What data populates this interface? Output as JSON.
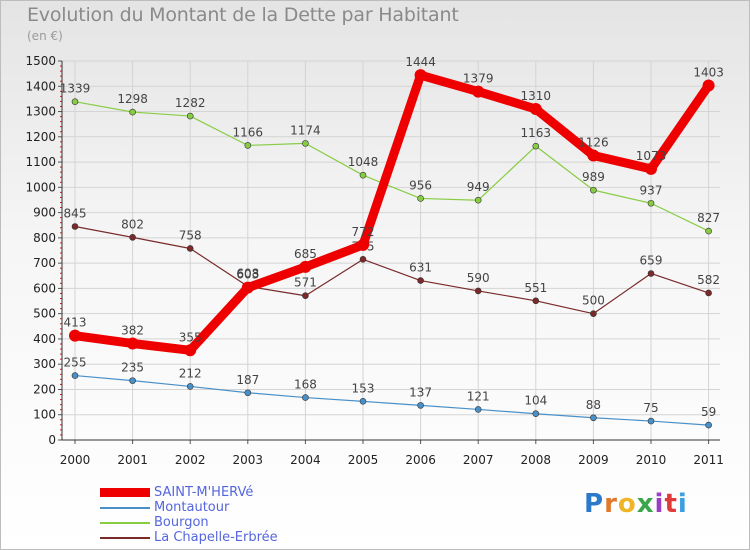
{
  "title": "Evolution du Montant de la Dette par Habitant",
  "subtitle": "(en €)",
  "logo": {
    "letters": [
      "P",
      "r",
      "o",
      "x",
      "i",
      "t",
      "i"
    ],
    "colors": [
      "#2b79c8",
      "#e07a2a",
      "#f0b428",
      "#3aa64a",
      "#9a3ec8",
      "#e13a3a",
      "#3a9ee0"
    ]
  },
  "chart_data": {
    "type": "line",
    "x": [
      "2000",
      "2001",
      "2002",
      "2003",
      "2004",
      "2005",
      "2006",
      "2007",
      "2008",
      "2009",
      "2010",
      "2011"
    ],
    "ylim": [
      0,
      1500
    ],
    "yticks": [
      "0",
      "100",
      "200",
      "300",
      "400",
      "500",
      "600",
      "700",
      "800",
      "900",
      "1000",
      "1100",
      "1200",
      "1300",
      "1400",
      "1500"
    ],
    "grid": true,
    "legend_position": "bottom-left",
    "series": [
      {
        "name": "SAINT-M'HERVé",
        "color": "#ee0000",
        "values": [
          413,
          382,
          355,
          603,
          685,
          772,
          1444,
          1379,
          1310,
          1126,
          1073,
          1403
        ],
        "labels": [
          "413",
          "382",
          "355",
          "603",
          "685",
          "772",
          "1444",
          "1379",
          "1310",
          "1126",
          "1073",
          "1403"
        ]
      },
      {
        "name": "Montautour",
        "color": "#4a90c8",
        "values": [
          255,
          235,
          212,
          187,
          168,
          153,
          137,
          121,
          104,
          88,
          75,
          59
        ],
        "labels": [
          "255",
          "235",
          "212",
          "187",
          "168",
          "153",
          "137",
          "121",
          "104",
          "88",
          "75",
          "59"
        ]
      },
      {
        "name": "Bourgon",
        "color": "#88cc44",
        "values": [
          1339,
          1298,
          1282,
          1166,
          1174,
          1048,
          956,
          949,
          1163,
          989,
          937,
          827
        ],
        "labels": [
          "1339",
          "1298",
          "1282",
          "1166",
          "1174",
          "1048",
          "956",
          "949",
          "1163",
          "989",
          "937",
          "827"
        ]
      },
      {
        "name": "La Chapelle-Erbrée",
        "color": "#7a2a2a",
        "values": [
          845,
          802,
          758,
          608,
          571,
          715,
          631,
          590,
          551,
          500,
          659,
          582
        ],
        "labels": [
          "845",
          "802",
          "758",
          "608",
          "571",
          "715",
          "631",
          "590",
          "551",
          "500",
          "659",
          "582"
        ]
      }
    ]
  }
}
